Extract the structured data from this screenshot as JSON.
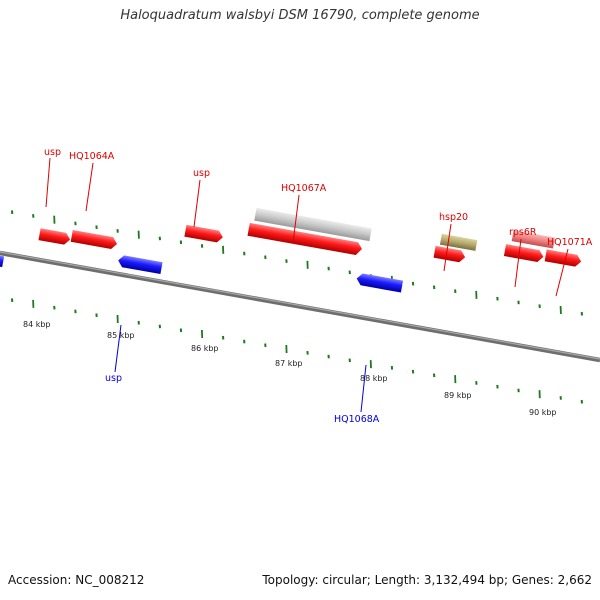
{
  "title": "Haloquadratum walsbyi DSM 16790, complete genome",
  "footer": {
    "accession": "Accession: NC_008212",
    "summary": "Topology: circular; Length: 3,132,494 bp; Genes: 2,662"
  },
  "colors": {
    "forward_gene": "#ff0000",
    "reverse_gene": "#0000ee",
    "pseudogene": "#c8c8c8",
    "hsp20_gene": "#b5aa6a",
    "rps6R_gene": "#f08080",
    "tick": "#1e7a1e",
    "backbone": "#7a7a7a"
  },
  "axis": {
    "labels": [
      "84 kbp",
      "85 kbp",
      "86 kbp",
      "87 kbp",
      "88 kbp",
      "89 kbp",
      "90 kbp"
    ]
  },
  "gene_labels": {
    "top": [
      "usp",
      "HQ1064A",
      "usp",
      "HQ1067A",
      "hsp20",
      "rps6R",
      "HQ1071A"
    ],
    "bottom": [
      "usp",
      "HQ1068A"
    ]
  }
}
